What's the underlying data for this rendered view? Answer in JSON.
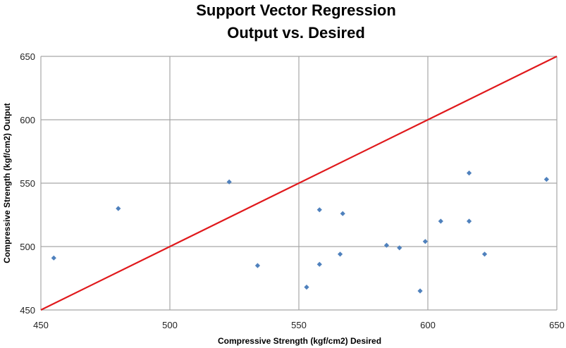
{
  "chart_data": {
    "type": "scatter",
    "title_line1": "Support Vector Regression",
    "title_line2": "Output vs. Desired",
    "xlabel": "Compressive Strength (kgf/cm2) Desired",
    "ylabel": "Compressive Strength (kgf/cm2) Output",
    "xlim": [
      450,
      650
    ],
    "ylim": [
      450,
      650
    ],
    "x_ticks": [
      "450",
      "500",
      "550",
      "600",
      "650"
    ],
    "y_ticks": [
      "450",
      "500",
      "550",
      "600",
      "650"
    ],
    "grid": true,
    "legend": "none",
    "point_color": "#4f81bd",
    "reference_line_color": "#e0191c",
    "grid_color": "#a6a6a6",
    "reference_line": {
      "x": [
        450,
        650
      ],
      "y": [
        450,
        650
      ]
    },
    "series": [
      {
        "points": [
          {
            "x": 455,
            "y": 491
          },
          {
            "x": 480,
            "y": 530
          },
          {
            "x": 523,
            "y": 551
          },
          {
            "x": 534,
            "y": 485
          },
          {
            "x": 553,
            "y": 468
          },
          {
            "x": 558,
            "y": 529
          },
          {
            "x": 558,
            "y": 486
          },
          {
            "x": 566,
            "y": 494
          },
          {
            "x": 567,
            "y": 526
          },
          {
            "x": 584,
            "y": 501
          },
          {
            "x": 589,
            "y": 499
          },
          {
            "x": 597,
            "y": 465
          },
          {
            "x": 599,
            "y": 504
          },
          {
            "x": 605,
            "y": 520
          },
          {
            "x": 616,
            "y": 558
          },
          {
            "x": 616,
            "y": 520
          },
          {
            "x": 622,
            "y": 494
          },
          {
            "x": 646,
            "y": 553
          }
        ]
      }
    ]
  }
}
